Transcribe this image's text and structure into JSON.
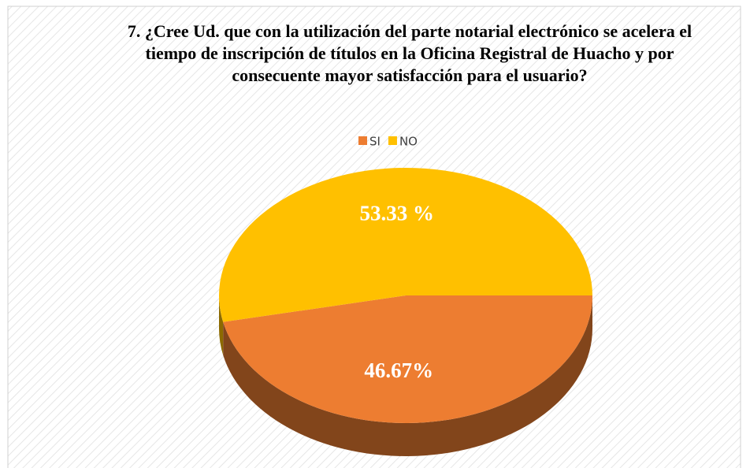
{
  "chart_data": {
    "type": "pie",
    "title": "7. ¿Cree Ud. que con la utilización del parte notarial electrónico se acelera el tiempo de inscripción de títulos en la Oficina Registral de Huacho y por consecuente mayor satisfacción para el usuario?",
    "categories": [
      "SI",
      "NO"
    ],
    "values": [
      46.67,
      53.33
    ],
    "value_labels": [
      "46.67%",
      "53.33 %"
    ],
    "colors": [
      "#ed7d31",
      "#ffc000"
    ],
    "legend": "top"
  }
}
